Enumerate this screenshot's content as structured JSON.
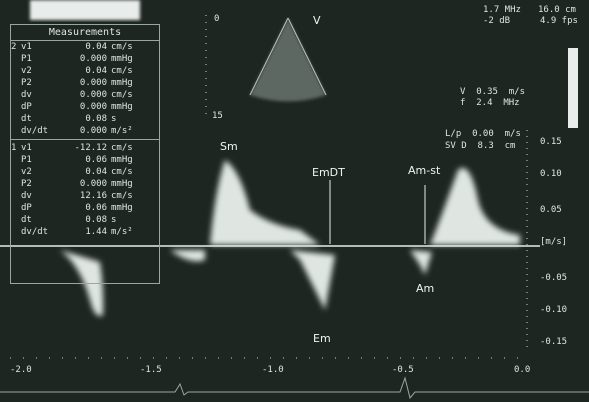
{
  "panel": {
    "title": "Measurements",
    "groups": [
      {
        "id": "2",
        "rows": [
          [
            "v1",
            "0.04",
            "cm/s"
          ],
          [
            "P1",
            "0.000",
            "mmHg"
          ],
          [
            "v2",
            "0.04",
            "cm/s"
          ],
          [
            "P2",
            "0.000",
            "mmHg"
          ],
          [
            "dv",
            "0.000",
            "cm/s"
          ],
          [
            "dP",
            "0.000",
            "mmHg"
          ],
          [
            "dt",
            "0.08",
            "s"
          ],
          [
            "dv/dt",
            "0.000",
            "m/s²"
          ]
        ]
      },
      {
        "id": "1",
        "rows": [
          [
            "v1",
            "-12.12",
            "cm/s"
          ],
          [
            "P1",
            "0.06",
            "mmHg"
          ],
          [
            "v2",
            "0.04",
            "cm/s"
          ],
          [
            "P2",
            "0.000",
            "mmHg"
          ],
          [
            "dv",
            "12.16",
            "cm/s"
          ],
          [
            "dP",
            "0.06",
            "mmHg"
          ],
          [
            "dt",
            "0.08",
            "s"
          ],
          [
            "dv/dt",
            "1.44",
            "m/s²"
          ]
        ]
      }
    ]
  },
  "settings": {
    "freq": "1.7 MHz",
    "depth": "16.0 cm",
    "gain": "-2 dB",
    "fps": "4.9 fps",
    "scale_v": "V  0.35  m/s",
    "scale_f": "f  2.4  MHz",
    "lp": "L/p  0.00  m/s",
    "sv": "SV D  8.3  cm"
  },
  "sector": {
    "mark": "V",
    "depth_top": "0",
    "depth_bottom": "15"
  },
  "annotations": {
    "sm": "Sm",
    "emdt": "EmDT",
    "amst": "Am-st",
    "am": "Am",
    "em": "Em"
  },
  "velocity_axis": {
    "unit": "[m/s]",
    "ticks": [
      "0.15",
      "0.10",
      "0.05",
      "-0.05",
      "-0.10",
      "-0.15"
    ]
  },
  "time_axis": {
    "ticks": [
      "-2.0",
      "-1.5",
      "-1.0",
      "-0.5",
      "0.0"
    ]
  }
}
